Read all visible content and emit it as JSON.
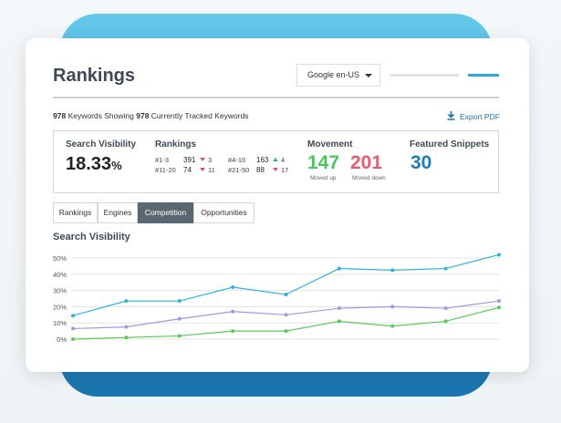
{
  "header": {
    "title": "Rankings",
    "dropdown": "Google en-US"
  },
  "summary": {
    "showing": "978",
    "showing_label": "Keywords Showing",
    "tracked": "978",
    "tracked_label": "Currently Tracked Keywords",
    "export": "Export PDF"
  },
  "stats": {
    "visibility": {
      "label": "Search Visibility",
      "value": "18.33",
      "unit": "%"
    },
    "rankings": {
      "label": "Rankings",
      "rows": [
        {
          "range": "#1-3",
          "count": "391",
          "change": "3",
          "direction": "down"
        },
        {
          "range": "#4-10",
          "count": "163",
          "change": "4",
          "direction": "up"
        },
        {
          "range": "#11-20",
          "count": "74",
          "change": "11",
          "direction": "down"
        },
        {
          "range": "#21-50",
          "count": "88",
          "change": "17",
          "direction": "down"
        }
      ]
    },
    "movement": {
      "label": "Movement",
      "up": {
        "value": "147",
        "label": "Moved up"
      },
      "down": {
        "value": "201",
        "label": "Moved down"
      }
    },
    "snippets": {
      "label": "Featured Snippets",
      "value": "30"
    }
  },
  "tabs": [
    "Rankings",
    "Engines",
    "Competition",
    "Opportunities"
  ],
  "active_tab": 2,
  "chart_data": {
    "type": "line",
    "title": "Search Visibility",
    "categories": [
      null,
      null,
      null,
      null,
      null,
      null,
      null,
      null,
      null
    ],
    "ylim": [
      0,
      50
    ],
    "yticks": [
      {
        "value": 0,
        "label": "0%"
      },
      {
        "value": 10,
        "label": "10%"
      },
      {
        "value": 20,
        "label": "20%"
      },
      {
        "value": 30,
        "label": "30%"
      },
      {
        "value": 40,
        "label": "40%"
      },
      {
        "value": 50,
        "label": "50%"
      }
    ],
    "grid": true,
    "series": [
      {
        "color": "#2bb3d8",
        "values": [
          14.5,
          23.5,
          23.5,
          32,
          27.5,
          43.5,
          42.5,
          43.5,
          52
        ]
      },
      {
        "color": "#a896dc",
        "values": [
          6.5,
          7.5,
          12.5,
          17,
          15,
          19,
          20,
          19,
          23.5
        ]
      },
      {
        "color": "#5cc85c",
        "values": [
          0,
          1,
          2,
          5,
          5,
          11,
          8,
          11,
          19.5
        ]
      }
    ]
  }
}
